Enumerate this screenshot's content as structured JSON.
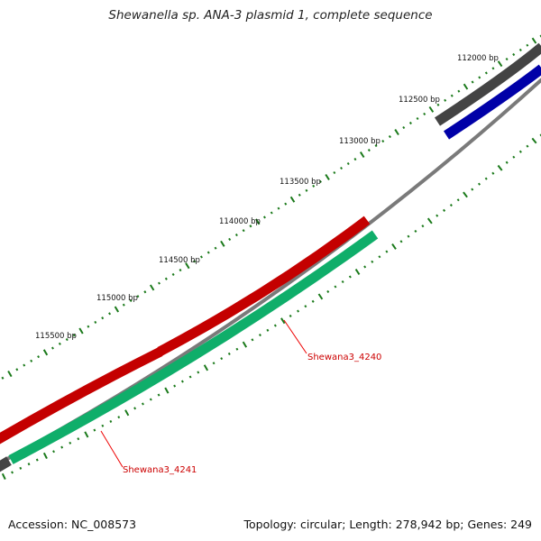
{
  "title": "Shewanella sp. ANA-3 plasmid 1, complete sequence",
  "bp_labels": [
    "112000 bp",
    "112500 bp",
    "113000 bp",
    "113500 bp",
    "114000 bp",
    "114500 bp",
    "115000 bp",
    "115500 bp"
  ],
  "genes": [
    {
      "label": "Shewana3_4240",
      "color": "#cc0000"
    },
    {
      "label": "Shewana3_4241",
      "color": "#cc0000"
    }
  ],
  "colors": {
    "backbone": "#8c8c8c",
    "forward_feature": "#ee0000",
    "reverse_feature": "#1fe08f",
    "other_forward": "#616161",
    "other_reverse": "#0000dd",
    "tick": "#1b7a1b"
  },
  "footer": {
    "accession": "Accession: NC_008573",
    "stats": "Topology: circular; Length: 278,942 bp; Genes: 249"
  }
}
